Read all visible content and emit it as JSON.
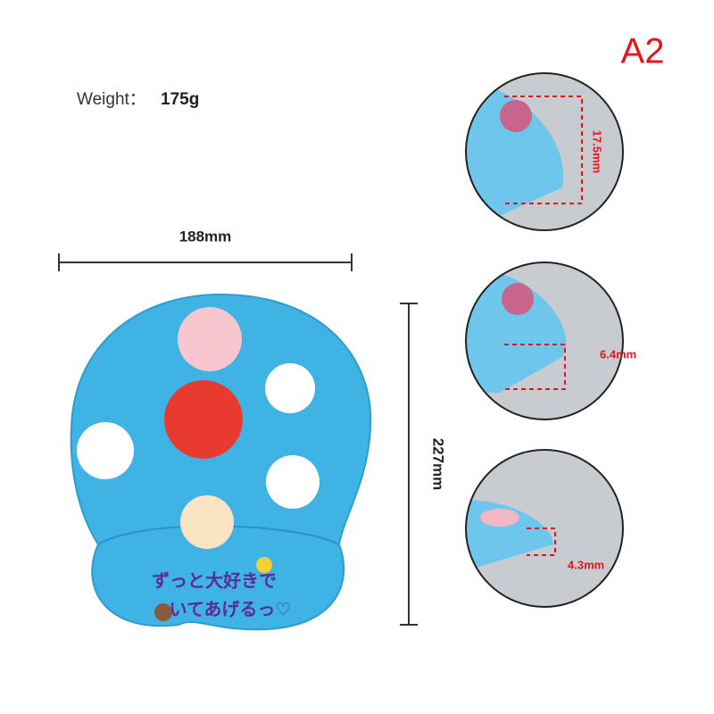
{
  "badge": "A2",
  "weight": {
    "label": "Weight：",
    "value": "175g"
  },
  "dimensions": {
    "width": "188mm",
    "height": "227mm"
  },
  "details": [
    "17.5mm",
    "6.4mm",
    "4.3mm"
  ],
  "pad_text": [
    "ずっと大好きで",
    "いてあげるっ♡"
  ]
}
